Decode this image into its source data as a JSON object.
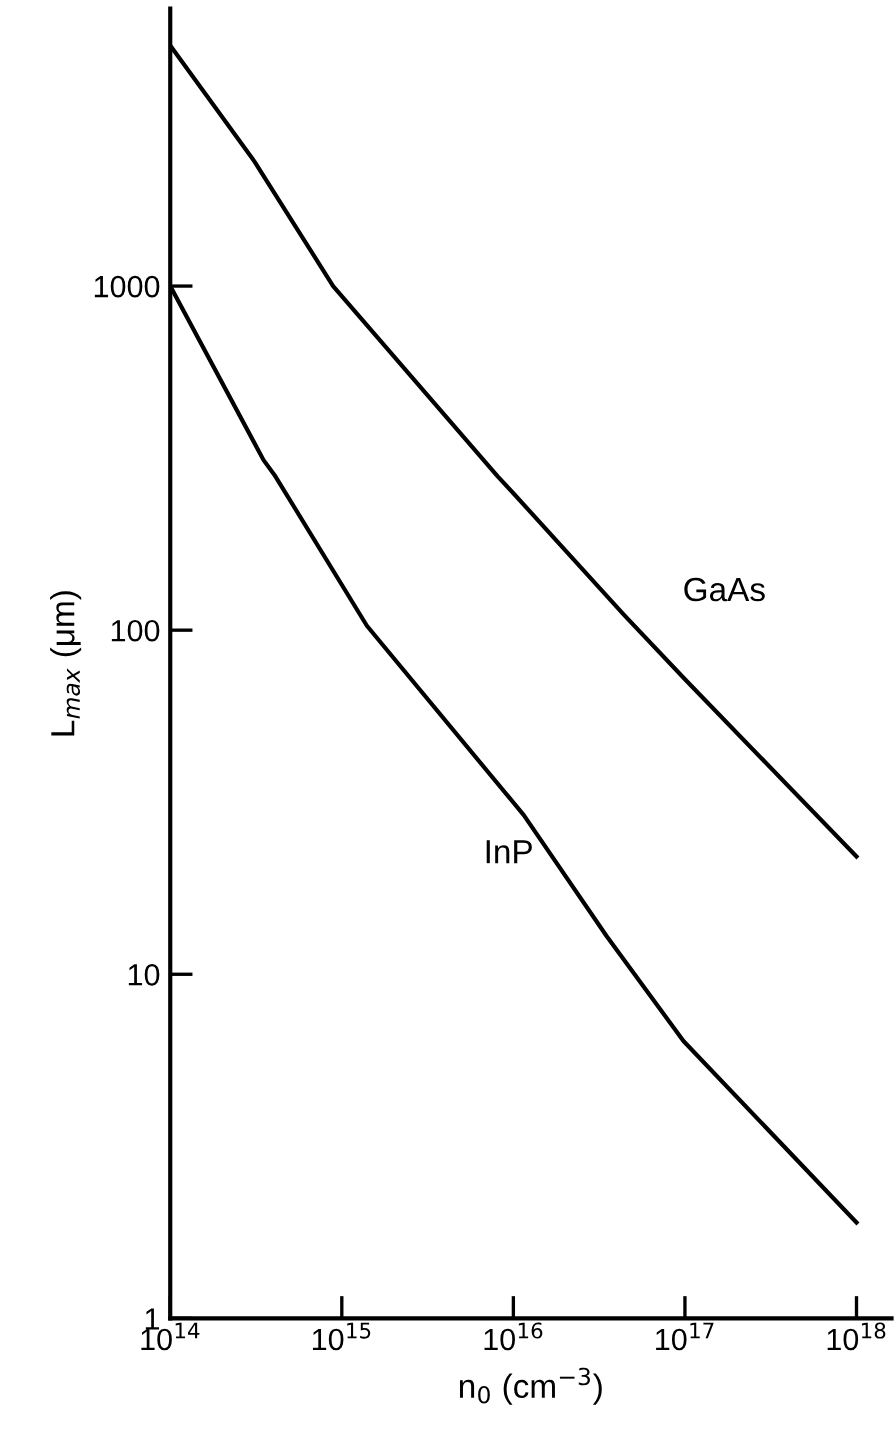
{
  "chart_data": {
    "type": "line",
    "xlabel": "n$_{0}$ (cm$^{−3}$)",
    "ylabel": "L$_{max}$ (μm)",
    "log": "xy",
    "xlim": [
      100000000000000.0,
      1.6e+18
    ],
    "ylim": [
      1,
      6400
    ],
    "xticks": [
      {
        "value": 100000000000000.0,
        "label": "10$^{14}$"
      },
      {
        "value": 1000000000000000.0,
        "label": "10$^{15}$"
      },
      {
        "value": 1e+16,
        "label": "10$^{16}$"
      },
      {
        "value": 1e+17,
        "label": "10$^{17}$"
      },
      {
        "value": 1e+18,
        "label": "10$^{18}$"
      }
    ],
    "yticks": [
      1,
      10,
      100,
      1000
    ],
    "grid": false,
    "legend": false,
    "marker": "none",
    "line_style": "solid",
    "series": [
      {
        "name": "GaAs",
        "color": "#000000",
        "x": [
          100000000000000.0,
          310000000000000.0,
          890000000000000.0,
          8100000000000000.0,
          1e+16,
          4.4e+16,
          1e+17,
          1e+18
        ],
        "values": [
          5000,
          2300,
          1000,
          280,
          250,
          111,
          72,
          22
        ]
      },
      {
        "name": "InP",
        "color": "#000000",
        "x": [
          100000000000000.0,
          350000000000000.0,
          410000000000000.0,
          1400000000000000.0,
          1.15e+16,
          3.5e+16,
          9.8e+16,
          1e+18
        ],
        "values": [
          1000,
          312,
          280,
          103,
          29,
          12.9,
          6.4,
          1.9
        ]
      }
    ]
  }
}
